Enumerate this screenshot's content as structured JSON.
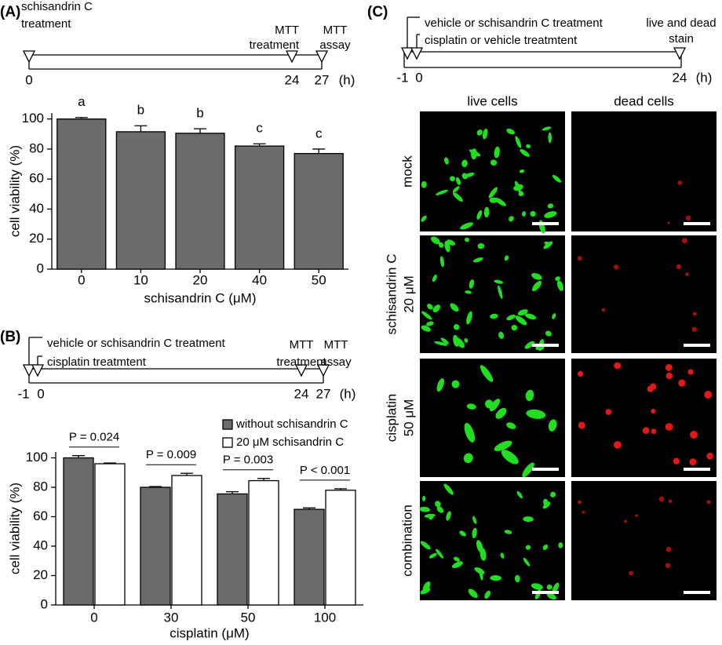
{
  "panel_labels": [
    "(A)",
    "(B)",
    "(C)"
  ],
  "timelines": [
    {
      "events": [
        {
          "lines": [
            "schisandrin C",
            "treatment"
          ]
        },
        {
          "lines": [
            "MTT",
            "treatment"
          ]
        },
        {
          "lines": [
            "MTT",
            "assay"
          ]
        }
      ],
      "ticks": [
        "0",
        "24",
        "27"
      ],
      "unit": "(h)"
    },
    {
      "events": [
        {
          "lines": [
            "vehicle or schisandrin C treatment"
          ]
        },
        {
          "lines": [
            "cisplatin treatmtent"
          ]
        },
        {
          "lines": [
            "MTT",
            "treatment"
          ]
        },
        {
          "lines": [
            "MTT",
            "assay"
          ]
        }
      ],
      "ticks": [
        "-1",
        "0",
        "24",
        "27"
      ],
      "unit": "(h)"
    },
    {
      "events": [
        {
          "lines": [
            "vehicle or schisandrin C treatment"
          ]
        },
        {
          "lines": [
            "cisplatin or vehicle treatmtent"
          ]
        },
        {
          "lines": [
            "live and dead",
            "stain"
          ]
        }
      ],
      "ticks": [
        "-1",
        "0",
        "24"
      ],
      "unit": "(h)"
    }
  ],
  "chart_data": [
    {
      "type": "bar",
      "x_label": "schisandrin C (μM)",
      "y_label": "cell viability (%)",
      "categories": [
        "0",
        "10",
        "20",
        "40",
        "50"
      ],
      "values": [
        100,
        91.5,
        90.5,
        82,
        77
      ],
      "errors": [
        1,
        4,
        3,
        1.5,
        3
      ],
      "significance_labels": [
        "a",
        "b",
        "b",
        "c",
        "c"
      ],
      "color": "#6b6b6b",
      "ylim": [
        0,
        104
      ],
      "yticks": [
        0,
        20,
        40,
        60,
        80,
        100
      ]
    },
    {
      "type": "grouped_bar",
      "x_label": "cisplatin (μM)",
      "y_label": "cell viability (%)",
      "categories": [
        "0",
        "30",
        "50",
        "100"
      ],
      "series": [
        {
          "name": "without schisandrin C",
          "color": "#6b6b6b",
          "values": [
            100,
            80,
            75.5,
            65
          ],
          "errors": [
            1.5,
            0.5,
            1.5,
            1
          ]
        },
        {
          "name": "20 μM schisandrin C",
          "color": "#ffffff",
          "values": [
            96,
            88,
            84.5,
            78
          ],
          "errors": [
            0.5,
            1.5,
            1.5,
            1
          ]
        }
      ],
      "p_values": [
        "P = 0.024",
        "P = 0.009",
        "P = 0.003",
        "P < 0.001"
      ],
      "legend": "upper right",
      "ylim": [
        0,
        104
      ],
      "yticks": [
        0,
        20,
        40,
        60,
        80,
        100
      ]
    }
  ],
  "micrographs": {
    "columns": [
      "live cells",
      "dead cells"
    ],
    "rows": [
      [
        "mock"
      ],
      [
        "schisandrin C",
        "20 μM"
      ],
      [
        "cisplatin",
        "50 μM"
      ],
      [
        "combination"
      ]
    ]
  }
}
